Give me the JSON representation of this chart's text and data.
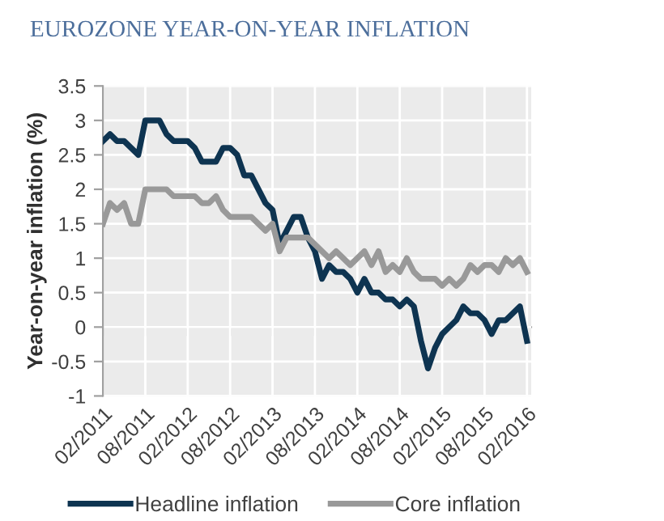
{
  "chart_data": {
    "type": "line",
    "title": "EUROZONE YEAR-ON-YEAR INFLATION",
    "ylabel": "Year-on-year inflation (%)",
    "categories": [
      "02/2011",
      null,
      null,
      null,
      null,
      null,
      "08/2011",
      null,
      null,
      null,
      null,
      null,
      "02/2012",
      null,
      null,
      null,
      null,
      null,
      "08/2012",
      null,
      null,
      null,
      null,
      null,
      "02/2013",
      null,
      null,
      null,
      null,
      null,
      "08/2013",
      null,
      null,
      null,
      null,
      null,
      "02/2014",
      null,
      null,
      null,
      null,
      null,
      "08/2014",
      null,
      null,
      null,
      null,
      null,
      "02/2015",
      null,
      null,
      null,
      null,
      null,
      "08/2015",
      null,
      null,
      null,
      null,
      null,
      "02/2016"
    ],
    "series": [
      {
        "name": "Headline inflation",
        "color": "#0e3451",
        "values": [
          2.7,
          2.8,
          2.7,
          2.7,
          2.6,
          2.5,
          3.0,
          3.0,
          3.0,
          2.8,
          2.7,
          2.7,
          2.7,
          2.6,
          2.4,
          2.4,
          2.4,
          2.6,
          2.6,
          2.5,
          2.2,
          2.2,
          2.0,
          1.8,
          1.7,
          1.2,
          1.4,
          1.6,
          1.6,
          1.3,
          1.1,
          0.7,
          0.9,
          0.8,
          0.8,
          0.7,
          0.5,
          0.7,
          0.5,
          0.5,
          0.4,
          0.4,
          0.3,
          0.4,
          0.3,
          -0.2,
          -0.6,
          -0.3,
          -0.1,
          0.0,
          0.1,
          0.3,
          0.2,
          0.2,
          0.1,
          -0.1,
          0.1,
          0.1,
          0.2,
          0.3,
          -0.2
        ]
      },
      {
        "name": "Core inflation",
        "color": "#999999",
        "values": [
          1.5,
          1.8,
          1.7,
          1.8,
          1.5,
          1.5,
          2.0,
          2.0,
          2.0,
          2.0,
          1.9,
          1.9,
          1.9,
          1.9,
          1.8,
          1.8,
          1.9,
          1.7,
          1.6,
          1.6,
          1.6,
          1.6,
          1.5,
          1.4,
          1.5,
          1.1,
          1.3,
          1.3,
          1.3,
          1.3,
          1.2,
          1.1,
          1.0,
          1.1,
          1.0,
          0.9,
          1.0,
          1.1,
          0.9,
          1.1,
          0.8,
          0.9,
          0.8,
          1.0,
          0.8,
          0.7,
          0.7,
          0.7,
          0.6,
          0.7,
          0.6,
          0.7,
          0.9,
          0.8,
          0.9,
          0.9,
          0.8,
          1.0,
          0.9,
          1.0,
          0.8
        ]
      }
    ],
    "ylim": [
      -1,
      3.5
    ],
    "yticks": [
      -1,
      -0.5,
      0,
      0.5,
      1,
      1.5,
      2,
      2.5,
      3,
      3.5
    ],
    "grid": true,
    "legend": "bottom",
    "marker": "none",
    "line_style": "solid"
  }
}
